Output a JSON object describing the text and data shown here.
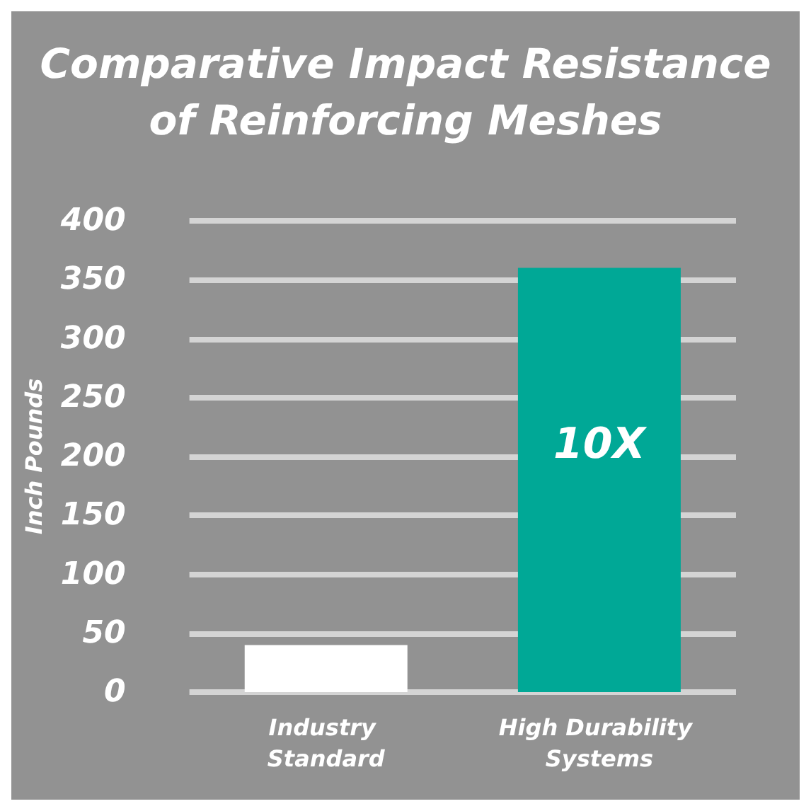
{
  "chart_data": {
    "type": "bar",
    "title": "Comparative Impact Resistance\nof Reinforcing Meshes",
    "ylabel": "Inch Pounds",
    "categories": [
      "Industry Standard",
      "High Durability Systems"
    ],
    "values": [
      40,
      360
    ],
    "colors": [
      "#ffffff",
      "#00a896"
    ],
    "ylim": [
      0,
      400
    ],
    "yticks": [
      0,
      50,
      100,
      150,
      200,
      250,
      300,
      350,
      400
    ],
    "grid": "y",
    "annotations": [
      "10X"
    ]
  }
}
